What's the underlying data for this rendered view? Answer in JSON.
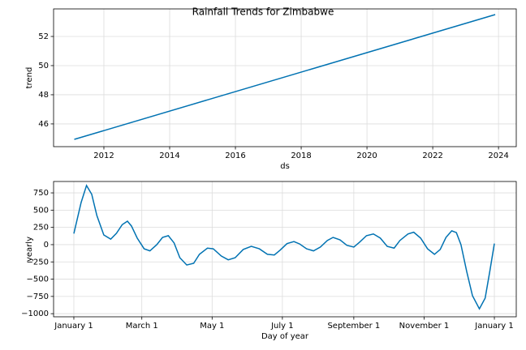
{
  "title": "Rainfall Trends for Zimbabwe",
  "chart_data": [
    {
      "type": "line",
      "xlabel": "ds",
      "ylabel": "trend",
      "color": "#0072B2",
      "grid": true,
      "x": [
        2011.1,
        2023.9
      ],
      "values": [
        44.94,
        53.5
      ],
      "xlim": [
        2010.47,
        2024.54
      ],
      "xticks": [
        2012,
        2014,
        2016,
        2018,
        2020,
        2022,
        2024
      ],
      "ylim": [
        44.44,
        53.89
      ],
      "yticks": [
        46,
        48,
        50,
        52
      ]
    },
    {
      "type": "line",
      "xlabel": "Day of year",
      "ylabel": "yearly",
      "color": "#0072B2",
      "grid": true,
      "x": [
        0,
        6.3,
        11,
        15.5,
        20,
        26,
        32,
        37,
        42,
        46.5,
        50,
        55,
        61,
        66,
        72,
        77,
        82,
        87,
        92,
        98,
        104,
        109,
        116,
        121,
        128,
        134,
        140,
        147,
        154,
        161,
        168,
        174,
        179,
        185,
        191,
        196,
        202,
        208,
        214,
        220,
        225,
        231,
        237,
        243,
        248,
        254,
        260,
        266,
        272,
        278,
        283,
        290,
        295,
        301,
        307,
        313,
        318,
        323,
        328,
        332,
        336,
        341,
        346,
        352,
        357,
        361,
        365
      ],
      "values": [
        160,
        610,
        857,
        730,
        420,
        140,
        80,
        165,
        290,
        340,
        270,
        95,
        -60,
        -90,
        0,
        105,
        130,
        25,
        -190,
        -295,
        -270,
        -140,
        -50,
        -60,
        -165,
        -220,
        -190,
        -70,
        -25,
        -60,
        -140,
        -150,
        -80,
        15,
        45,
        10,
        -60,
        -90,
        -35,
        60,
        105,
        70,
        -10,
        -35,
        35,
        130,
        155,
        95,
        -25,
        -50,
        60,
        155,
        180,
        95,
        -60,
        -140,
        -70,
        105,
        200,
        175,
        0,
        -390,
        -740,
        -930,
        -775,
        -390,
        15
      ],
      "xlim": [
        -17.6,
        384
      ],
      "xticks": [
        {
          "value": 0,
          "label": "January 1"
        },
        {
          "value": 59,
          "label": "March 1"
        },
        {
          "value": 120,
          "label": "May 1"
        },
        {
          "value": 181,
          "label": "July 1"
        },
        {
          "value": 243,
          "label": "September 1"
        },
        {
          "value": 304,
          "label": "November 1"
        },
        {
          "value": 365,
          "label": "January 1"
        }
      ],
      "ylim": [
        -1045,
        915
      ],
      "yticks": [
        {
          "value": -1000,
          "label": "−1000"
        },
        {
          "value": -750,
          "label": "−750"
        },
        {
          "value": -500,
          "label": "−500"
        },
        {
          "value": -250,
          "label": "−250"
        },
        0,
        250,
        500,
        750
      ]
    }
  ]
}
